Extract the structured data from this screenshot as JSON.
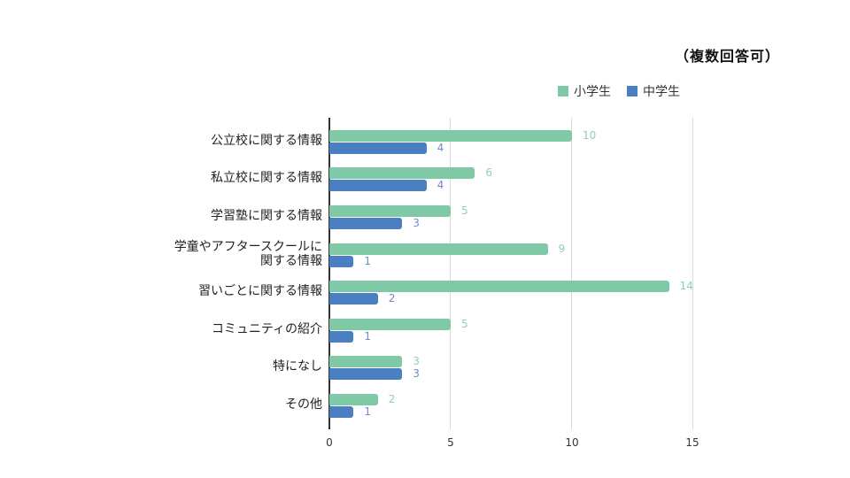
{
  "note": "（複数回答可）",
  "legend": [
    {
      "label": "小学生",
      "color": "#7fc9a6"
    },
    {
      "label": "中学生",
      "color": "#4a7fc1"
    }
  ],
  "x_ticks": [
    "0",
    "5",
    "10",
    "15"
  ],
  "categories": [
    {
      "label": "公立校に関する情報",
      "line2": "",
      "elementary": "10",
      "junior": "4"
    },
    {
      "label": "私立校に関する情報",
      "line2": "",
      "elementary": "6",
      "junior": "4"
    },
    {
      "label": "学習塾に関する情報",
      "line2": "",
      "elementary": "5",
      "junior": "3"
    },
    {
      "label": "学童やアフタースクールに",
      "line2": "関する情報",
      "elementary": "9",
      "junior": "1"
    },
    {
      "label": "習いごとに関する情報",
      "line2": "",
      "elementary": "14",
      "junior": "2"
    },
    {
      "label": "コミュニティの紹介",
      "line2": "",
      "elementary": "5",
      "junior": "1"
    },
    {
      "label": "特になし",
      "line2": "",
      "elementary": "3",
      "junior": "3"
    },
    {
      "label": "その他",
      "line2": "",
      "elementary": "2",
      "junior": "1"
    }
  ],
  "chart_data": {
    "type": "bar",
    "orientation": "horizontal",
    "title": "",
    "annotation": "（複数回答可）",
    "categories": [
      "公立校に関する情報",
      "私立校に関する情報",
      "学習塾に関する情報",
      "学童やアフタースクールに関する情報",
      "習いごとに関する情報",
      "コミュニティの紹介",
      "特になし",
      "その他"
    ],
    "series": [
      {
        "name": "小学生",
        "color": "#7fc9a6",
        "values": [
          10,
          6,
          5,
          9,
          14,
          5,
          3,
          2
        ]
      },
      {
        "name": "中学生",
        "color": "#4a7fc1",
        "values": [
          4,
          4,
          3,
          1,
          2,
          1,
          3,
          1
        ]
      }
    ],
    "xlabel": "",
    "ylabel": "",
    "xlim": [
      0,
      15
    ],
    "x_ticks": [
      0,
      5,
      10,
      15
    ],
    "grid": true,
    "legend_position": "top-right",
    "data_labels": true
  }
}
